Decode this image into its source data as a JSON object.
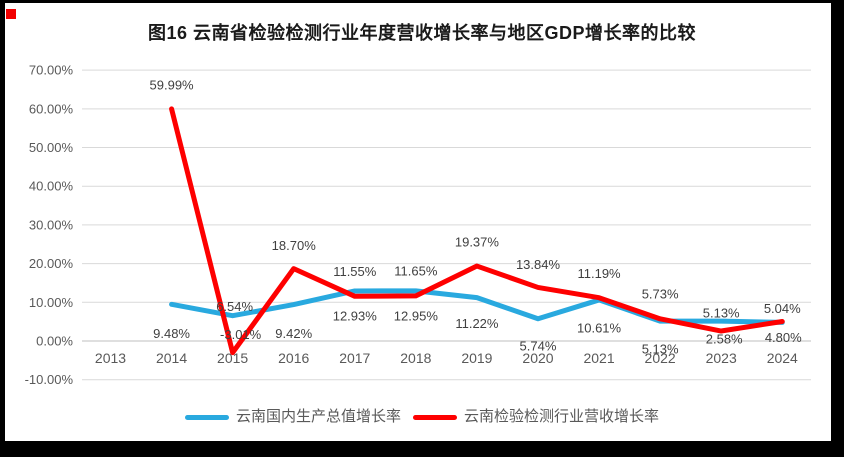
{
  "figure": {
    "title": "图16  云南省检验检测行业年度营收增长率与地区GDP增长率的比较"
  },
  "chart_data": {
    "type": "line",
    "title": "图16  云南省检验检测行业年度营收增长率与地区GDP增长率的比较",
    "categories": [
      "2013",
      "2014",
      "2015",
      "2016",
      "2017",
      "2018",
      "2019",
      "2020",
      "2021",
      "2022",
      "2023",
      "2024"
    ],
    "y_axis": {
      "min": -10,
      "max": 70,
      "step": 10,
      "tick_labels": [
        "70.00%",
        "60.00%",
        "50.00%",
        "40.00%",
        "30.00%",
        "20.00%",
        "10.00%",
        "0.00%",
        "-10.00%"
      ]
    },
    "grid": true,
    "legend_position": "bottom",
    "colors": {
      "gdp_line": "#29a9df",
      "revenue_line": "#fe0000",
      "gridline": "#d9d9d9",
      "axis_line": "#bfbfbf",
      "tick_text": "#595959",
      "label_text": "#404040"
    },
    "series": [
      {
        "name": "云南国内生产总值增长率",
        "color": "#29a9df",
        "first_category": "2014",
        "values": [
          9.48,
          6.54,
          9.42,
          12.93,
          12.95,
          11.22,
          5.74,
          10.61,
          5.13,
          5.13,
          4.8
        ],
        "labels": [
          "9.48%",
          "6.54%",
          "9.42%",
          "12.93%",
          "12.95%",
          "11.22%",
          "5.74%",
          "10.61%",
          "5.13%",
          "5.13%",
          "4.80%"
        ]
      },
      {
        "name": "云南检验检测行业营收增长率",
        "color": "#fe0000",
        "first_category": "2014",
        "values": [
          59.99,
          -3.01,
          18.7,
          11.55,
          11.65,
          19.37,
          13.84,
          11.19,
          5.73,
          2.58,
          5.04
        ],
        "labels": [
          "59.99%",
          "-3.01%",
          "18.70%",
          "11.55%",
          "11.65%",
          "19.37%",
          "13.84%",
          "11.19%",
          "5.73%",
          "2.58%",
          "5.04%"
        ]
      }
    ]
  }
}
